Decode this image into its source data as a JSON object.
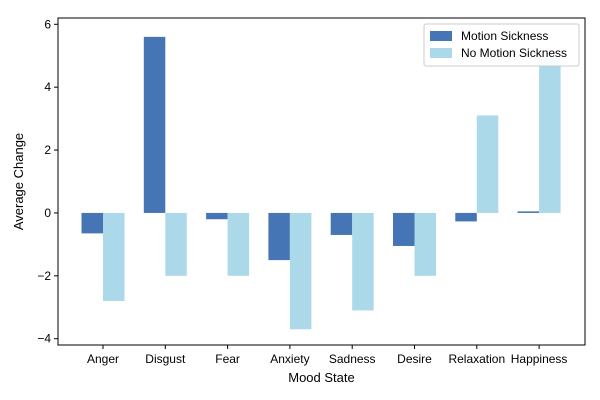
{
  "chart_data": {
    "type": "bar",
    "xlabel": "Mood State",
    "ylabel": "Average Change",
    "categories": [
      "Anger",
      "Disgust",
      "Fear",
      "Anxiety",
      "Sadness",
      "Desire",
      "Relaxation",
      "Happiness"
    ],
    "series": [
      {
        "name": "Motion Sickness",
        "color": "#4575b4",
        "values": [
          -0.65,
          5.6,
          -0.2,
          -1.5,
          -0.7,
          -1.05,
          -0.27,
          0.05
        ]
      },
      {
        "name": "No Motion Sickness",
        "color": "#abd9e9",
        "values": [
          -2.8,
          -2.0,
          -2.0,
          -3.7,
          -3.1,
          -2.0,
          3.1,
          4.9
        ]
      }
    ],
    "ylim": [
      -4.2,
      6.2
    ],
    "yticks": [
      -4,
      -2,
      0,
      2,
      4,
      6
    ],
    "ytick_labels": [
      "−4",
      "−2",
      "0",
      "2",
      "4",
      "6"
    ],
    "grid": false,
    "legend_position": "top-right"
  }
}
